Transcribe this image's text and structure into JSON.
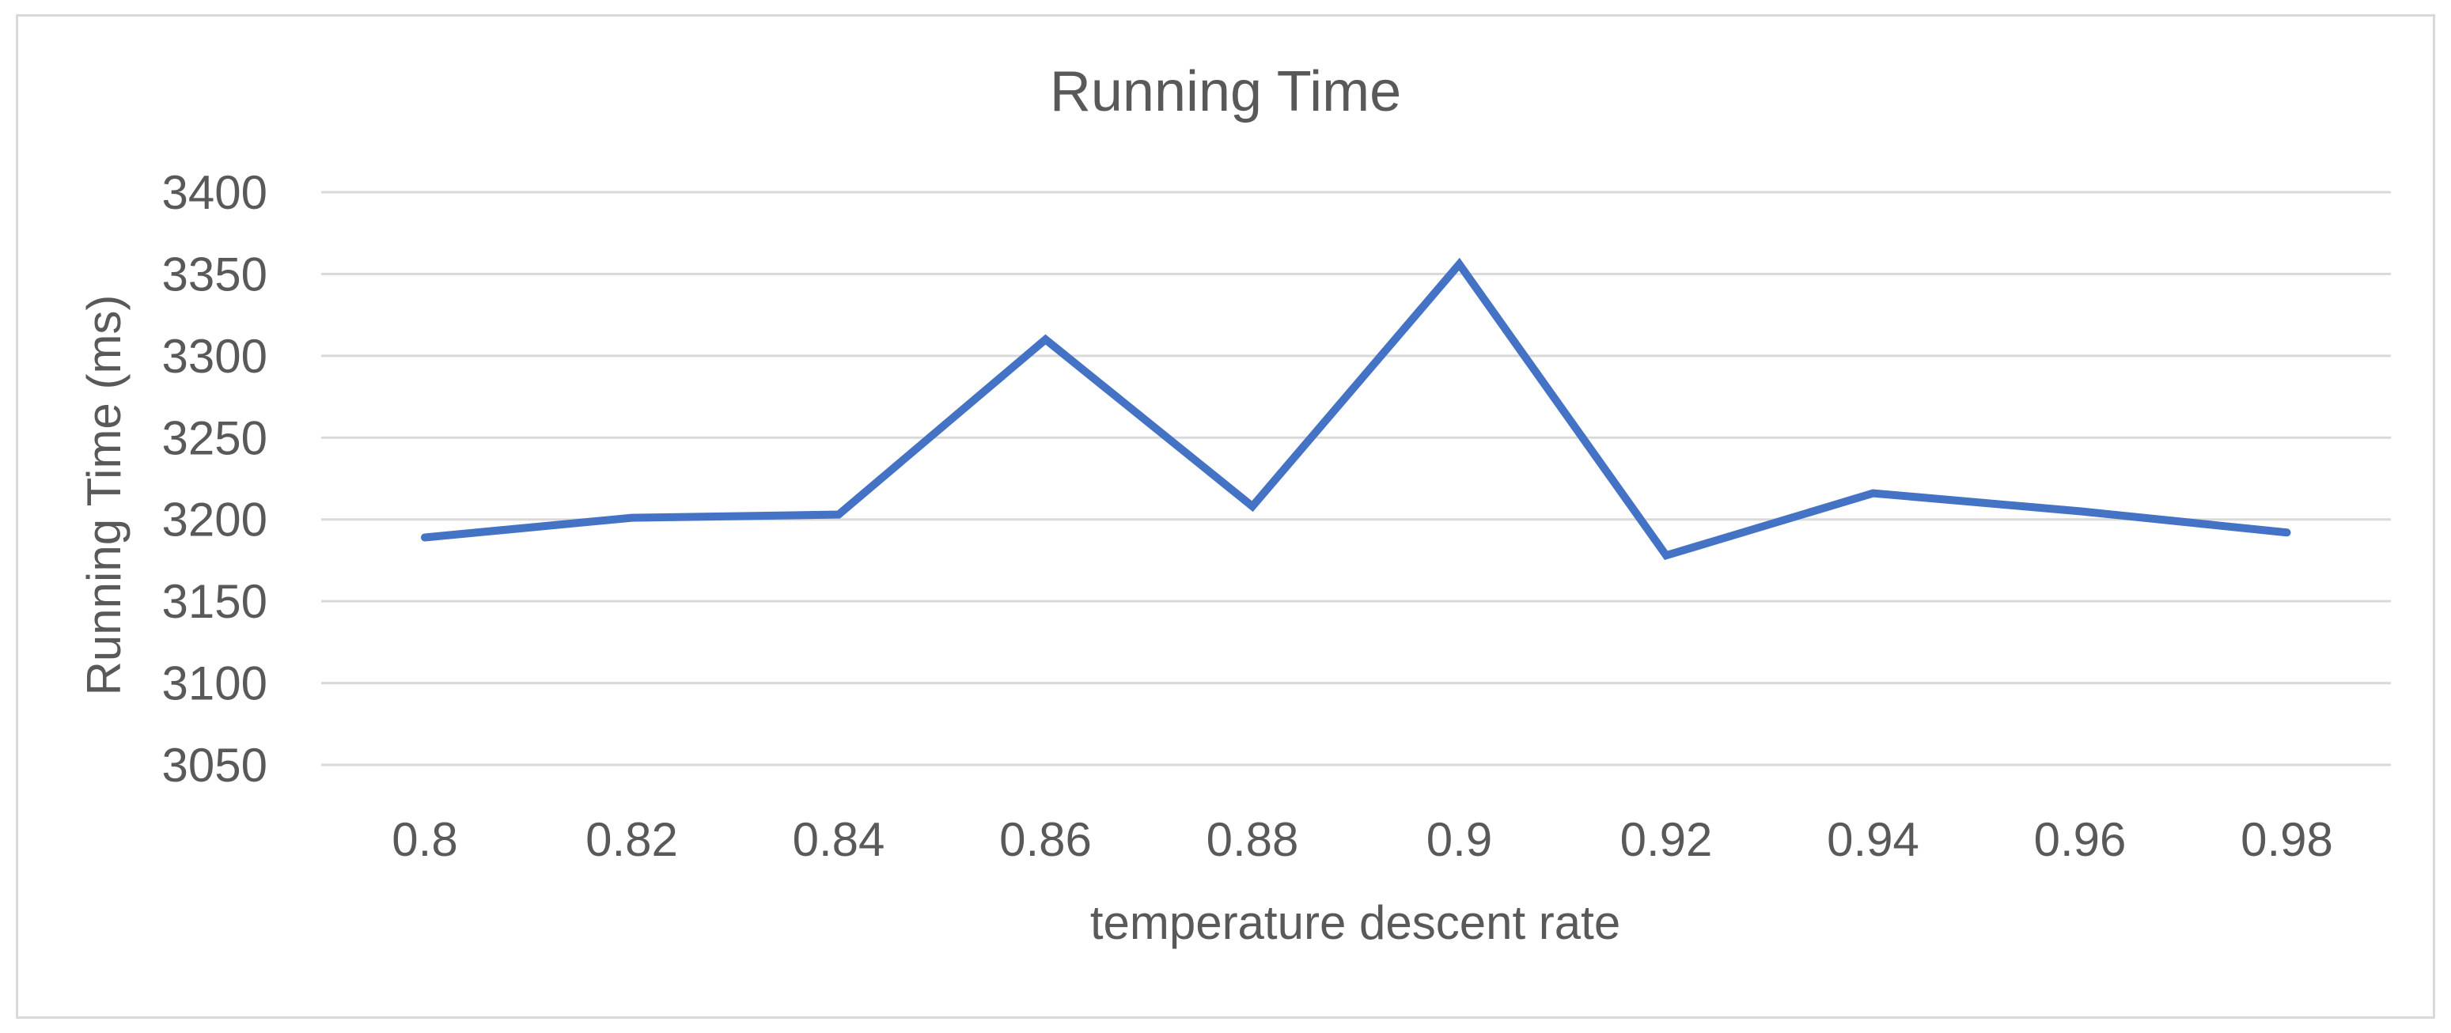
{
  "chart_data": {
    "type": "line",
    "title": "Running Time",
    "xlabel": "temperature descent rate",
    "ylabel": "Running Time (ms)",
    "categories": [
      "0.8",
      "0.82",
      "0.84",
      "0.86",
      "0.88",
      "0.9",
      "0.92",
      "0.94",
      "0.96",
      "0.98"
    ],
    "series": [
      {
        "values": [
          3189,
          3201,
          3203,
          3310,
          3208,
          3356,
          3178,
          3216,
          3205,
          3192
        ],
        "color": "#4472c4"
      }
    ],
    "ylim": [
      3050,
      3400
    ],
    "yticks": [
      "3400",
      "3350",
      "3300",
      "3250",
      "3200",
      "3150",
      "3100",
      "3050"
    ],
    "grid": true,
    "legend": "none"
  }
}
